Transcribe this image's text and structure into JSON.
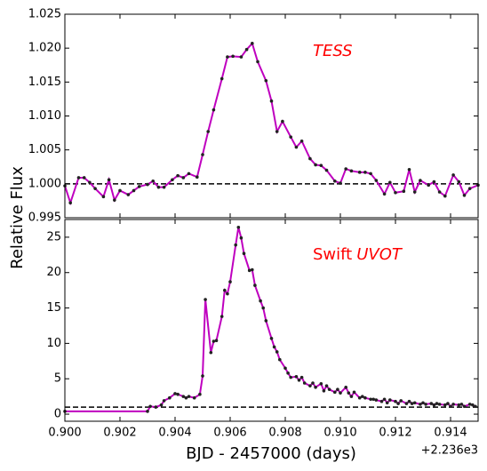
{
  "ylabel": "Relative Flux",
  "xlabel": "BJD - 2457000 (days)",
  "x_offset_label": "+2.236e3",
  "chart_data": [
    {
      "type": "line",
      "annotation": "TESS",
      "xlim": [
        0.9,
        0.915
      ],
      "xticks": [
        0.9,
        0.902,
        0.904,
        0.906,
        0.908,
        0.91,
        0.912,
        0.914
      ],
      "ylim": [
        0.995,
        1.025
      ],
      "yticks": [
        {
          "value": 0.995,
          "label": "0.995"
        },
        {
          "value": 1.0,
          "label": "1.000"
        },
        {
          "value": 1.005,
          "label": "1.005"
        },
        {
          "value": 1.01,
          "label": "1.010"
        },
        {
          "value": 1.015,
          "label": "1.015"
        },
        {
          "value": 1.02,
          "label": "1.020"
        },
        {
          "value": 1.025,
          "label": "1.025"
        }
      ],
      "hline": 1.0,
      "series": [
        {
          "color": "#bf00bf",
          "marker_color": "#222222",
          "x": [
            0.9,
            0.9002,
            0.9005,
            0.9007,
            0.9009,
            0.9011,
            0.9014,
            0.9016,
            0.9018,
            0.902,
            0.9023,
            0.9025,
            0.9027,
            0.903,
            0.9032,
            0.9034,
            0.9036,
            0.9039,
            0.9041,
            0.9043,
            0.9045,
            0.9048,
            0.905,
            0.9052,
            0.9054,
            0.9057,
            0.9059,
            0.9061,
            0.9064,
            0.9066,
            0.9068,
            0.907,
            0.9073,
            0.9075,
            0.9077,
            0.9079,
            0.9082,
            0.9084,
            0.9086,
            0.9089,
            0.9091,
            0.9093,
            0.9095,
            0.9098,
            0.91,
            0.9102,
            0.9104,
            0.9107,
            0.9109,
            0.9111,
            0.9113,
            0.9116,
            0.9118,
            0.912,
            0.9123,
            0.9125,
            0.9127,
            0.9129,
            0.9132,
            0.9134,
            0.9136,
            0.9138,
            0.9141,
            0.9143,
            0.9145,
            0.9147,
            0.915
          ],
          "values": [
            0.9997,
            0.9972,
            1.0009,
            1.0009,
            1.0002,
            0.9993,
            0.9981,
            1.0006,
            0.9976,
            0.999,
            0.9984,
            0.999,
            0.9996,
            0.9999,
            1.0004,
            0.9995,
            0.9995,
            1.0006,
            1.0012,
            1.0009,
            1.0015,
            1.001,
            1.0043,
            1.0077,
            1.0109,
            1.0155,
            1.0187,
            1.0188,
            1.0187,
            1.0198,
            1.0207,
            1.018,
            1.0152,
            1.0122,
            1.0077,
            1.0092,
            1.0069,
            1.0054,
            1.0063,
            1.0037,
            1.0028,
            1.0027,
            1.002,
            1.0004,
            1.0001,
            1.0022,
            1.0019,
            1.0017,
            1.0017,
            1.0015,
            1.0005,
            0.9985,
            1.0002,
            0.9987,
            0.9989,
            1.0021,
            0.9988,
            1.0005,
            0.9998,
            1.0003,
            0.9988,
            0.9982,
            1.0013,
            1.0003,
            0.9983,
            0.9993,
            0.9998
          ]
        }
      ]
    },
    {
      "type": "line",
      "annotation": [
        "Swift",
        "UVOT"
      ],
      "xlim": [
        0.9,
        0.915
      ],
      "xticks": [
        {
          "value": 0.9,
          "label": "0.900"
        },
        {
          "value": 0.902,
          "label": "0.902"
        },
        {
          "value": 0.904,
          "label": "0.904"
        },
        {
          "value": 0.906,
          "label": "0.906"
        },
        {
          "value": 0.908,
          "label": "0.908"
        },
        {
          "value": 0.91,
          "label": "0.910"
        },
        {
          "value": 0.912,
          "label": "0.912"
        },
        {
          "value": 0.914,
          "label": "0.914"
        }
      ],
      "ylim": [
        -1.0,
        27.5
      ],
      "yticks": [
        0,
        5,
        10,
        15,
        20,
        25
      ],
      "hline": 1.0,
      "series": [
        {
          "color": "#bf00bf",
          "marker_color": "#222222",
          "x": [
            0.9,
            0.903,
            0.9031,
            0.9033,
            0.9035,
            0.9036,
            0.9038,
            0.904,
            0.9041,
            0.9043,
            0.9044,
            0.9045,
            0.9047,
            0.9049,
            0.905,
            0.9051,
            0.9053,
            0.9054,
            0.9055,
            0.9057,
            0.9058,
            0.9059,
            0.906,
            0.9062,
            0.9063,
            0.9064,
            0.9065,
            0.9067,
            0.9068,
            0.9069,
            0.9071,
            0.9072,
            0.9073,
            0.9075,
            0.9076,
            0.9077,
            0.9078,
            0.908,
            0.9081,
            0.9082,
            0.9084,
            0.9085,
            0.9086,
            0.9087,
            0.9089,
            0.909,
            0.9091,
            0.9093,
            0.9094,
            0.9095,
            0.9096,
            0.9098,
            0.9099,
            0.91,
            0.9102,
            0.9103,
            0.9104,
            0.9105,
            0.9107,
            0.9108,
            0.9109,
            0.9111,
            0.9112,
            0.9113,
            0.9115,
            0.9116,
            0.9117,
            0.9118,
            0.912,
            0.9121,
            0.9122,
            0.9124,
            0.9125,
            0.9126,
            0.9127,
            0.9129,
            0.913,
            0.9131,
            0.9133,
            0.9134,
            0.9135,
            0.9136,
            0.9138,
            0.9139,
            0.914,
            0.9141,
            0.9143,
            0.9144,
            0.9145,
            0.9147,
            0.9148,
            0.9149
          ],
          "values": [
            0.4,
            0.4,
            1.1,
            1.0,
            1.3,
            1.9,
            2.3,
            2.9,
            2.8,
            2.5,
            2.3,
            2.5,
            2.3,
            2.8,
            5.4,
            16.2,
            8.7,
            10.3,
            10.4,
            13.8,
            17.5,
            17.0,
            18.7,
            23.9,
            26.4,
            24.9,
            22.7,
            20.3,
            20.4,
            18.2,
            16.0,
            15.0,
            13.2,
            10.7,
            9.5,
            8.8,
            7.7,
            6.5,
            5.8,
            5.2,
            5.3,
            4.8,
            5.2,
            4.4,
            4.0,
            4.4,
            3.8,
            4.3,
            3.3,
            4.0,
            3.5,
            3.1,
            3.5,
            3.0,
            3.8,
            3.0,
            2.5,
            3.1,
            2.3,
            2.5,
            2.3,
            2.1,
            2.1,
            2.0,
            1.8,
            2.1,
            1.6,
            2.0,
            1.8,
            1.5,
            1.9,
            1.5,
            1.8,
            1.5,
            1.6,
            1.4,
            1.6,
            1.4,
            1.5,
            1.3,
            1.5,
            1.4,
            1.3,
            1.5,
            1.1,
            1.4,
            1.3,
            1.4,
            1.1,
            1.4,
            1.3,
            1.1
          ]
        }
      ]
    }
  ]
}
